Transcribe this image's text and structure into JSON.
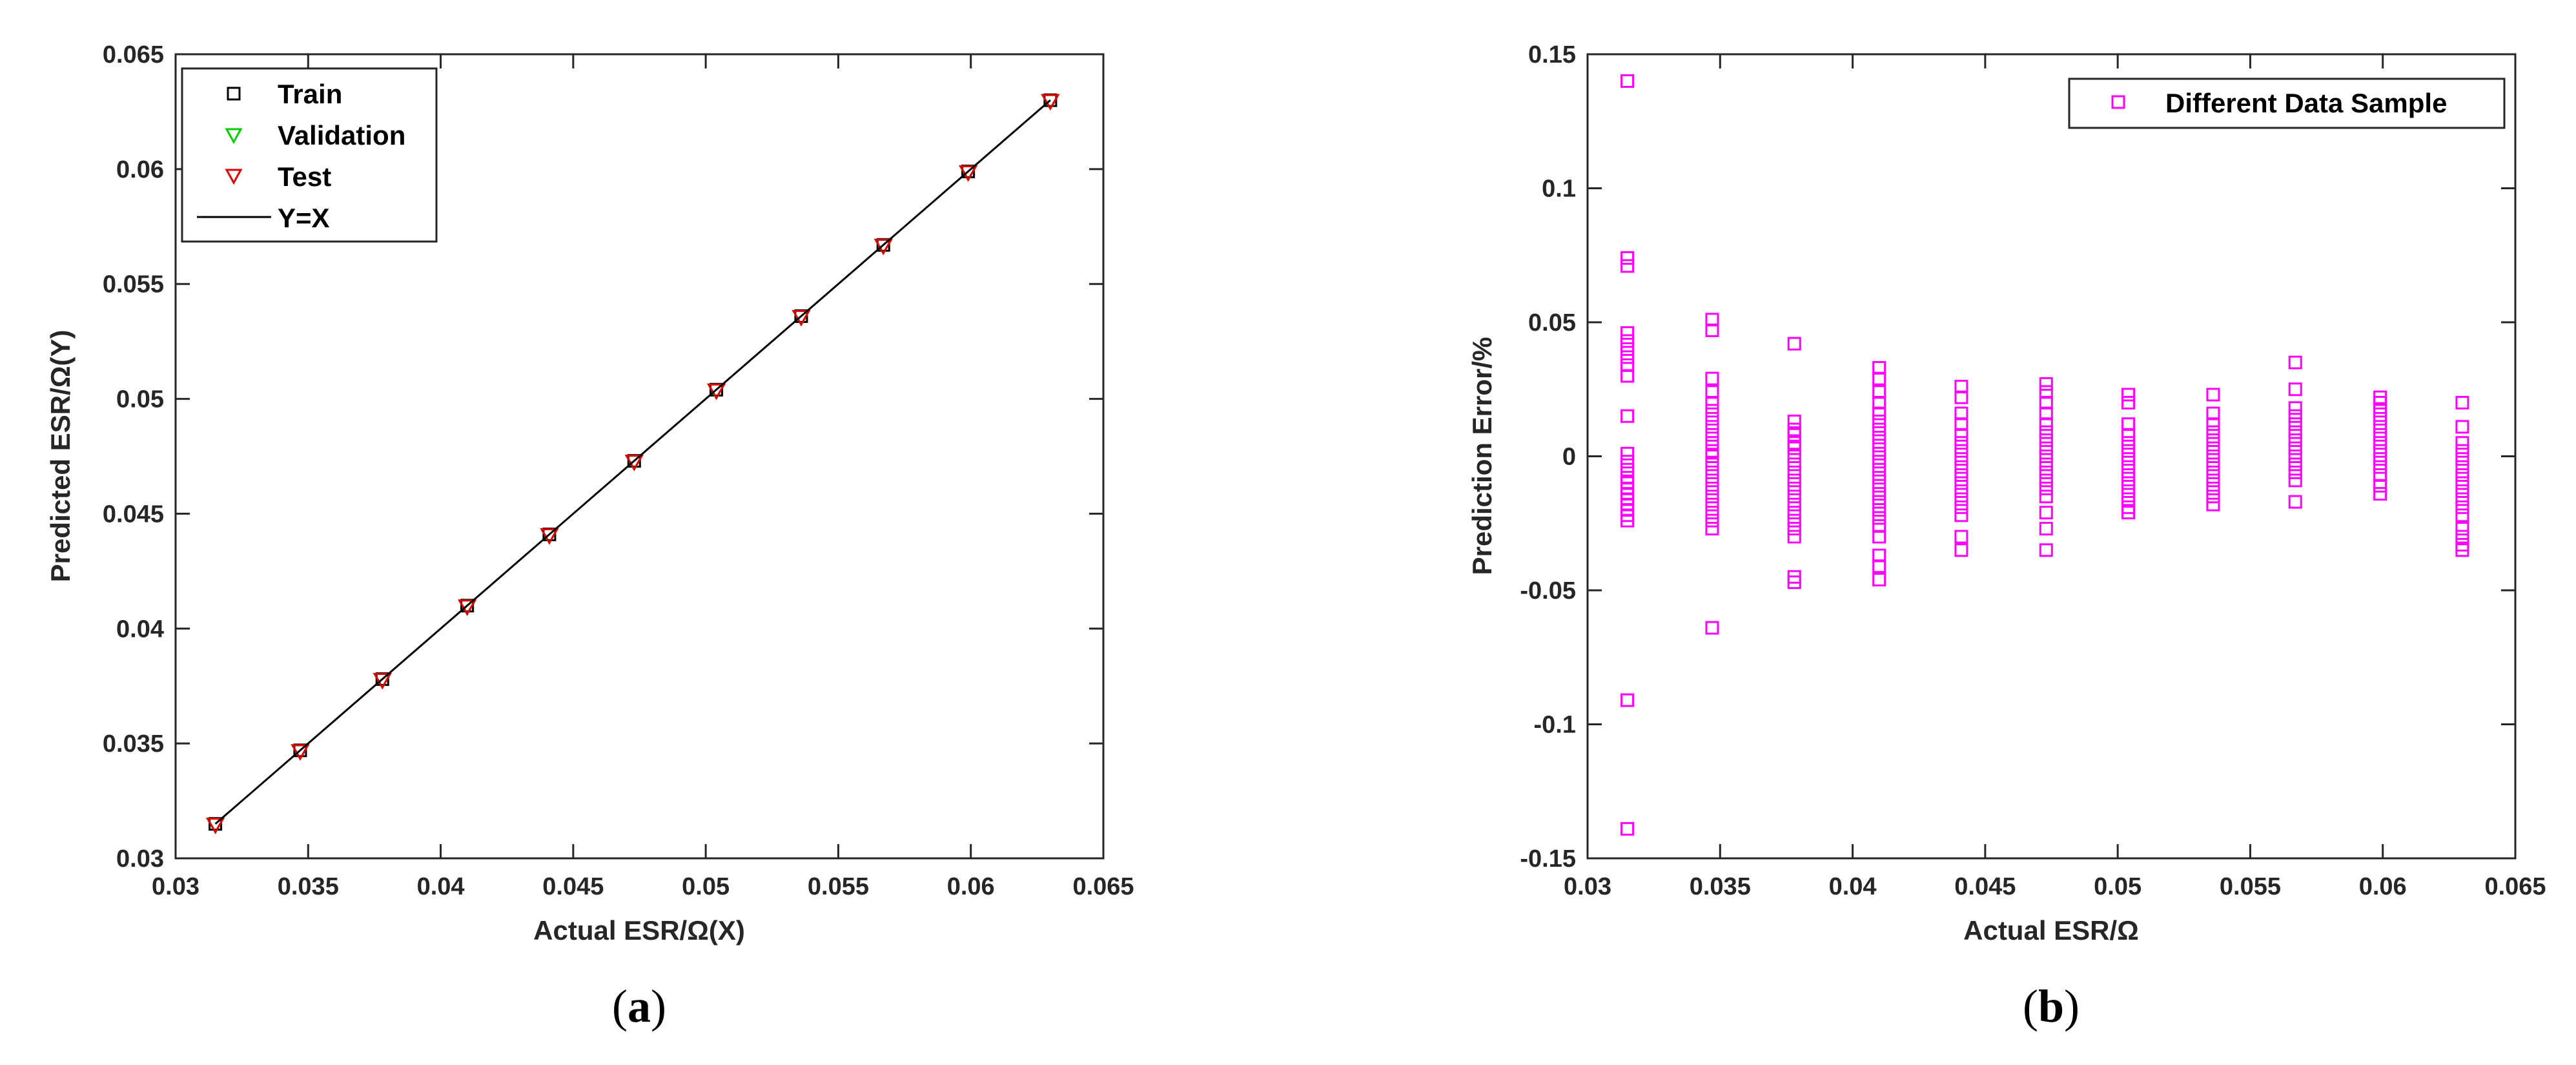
{
  "chart_data": [
    {
      "type": "scatter",
      "xlabel": "Actual ESR/Ω(X)",
      "ylabel": "Predicted ESR/Ω(Y)",
      "xlim": [
        0.03,
        0.065
      ],
      "ylim": [
        0.03,
        0.065
      ],
      "xticks": [
        "0.03",
        "0.035",
        "0.04",
        "0.045",
        "0.05",
        "0.055",
        "0.06",
        "0.065"
      ],
      "yticks": [
        "0.03",
        "0.035",
        "0.04",
        "0.045",
        "0.05",
        "0.055",
        "0.06",
        "0.065"
      ],
      "grid": false,
      "legend_position": "top-left",
      "caption": "a",
      "series": [
        {
          "name": "Train",
          "marker": "square",
          "color": "#000000",
          "x": [
            0.0315,
            0.0347,
            0.0378,
            0.041,
            0.0441,
            0.0473,
            0.0504,
            0.0536,
            0.0567,
            0.0599,
            0.063
          ],
          "y": [
            0.0315,
            0.0347,
            0.0378,
            0.041,
            0.0441,
            0.0473,
            0.0504,
            0.0536,
            0.0567,
            0.0599,
            0.063
          ]
        },
        {
          "name": "Validation",
          "marker": "triangle-down",
          "color": "#00cc00",
          "x": [
            0.0315,
            0.0347,
            0.0378,
            0.041,
            0.0441,
            0.0473,
            0.0504,
            0.0536,
            0.0567,
            0.0599,
            0.063
          ],
          "y": [
            0.0315,
            0.0347,
            0.0378,
            0.041,
            0.0441,
            0.0473,
            0.0504,
            0.0536,
            0.0567,
            0.0599,
            0.063
          ]
        },
        {
          "name": "Test",
          "marker": "triangle-down",
          "color": "#e00000",
          "x": [
            0.0315,
            0.0347,
            0.0378,
            0.041,
            0.0441,
            0.0473,
            0.0504,
            0.0536,
            0.0567,
            0.0599,
            0.063
          ],
          "y": [
            0.0315,
            0.0347,
            0.0378,
            0.041,
            0.0441,
            0.0473,
            0.0504,
            0.0536,
            0.0567,
            0.0599,
            0.063
          ]
        },
        {
          "name": "Y=X",
          "marker": "line",
          "color": "#000000",
          "x": [
            0.0315,
            0.063
          ],
          "y": [
            0.0315,
            0.063
          ]
        }
      ]
    },
    {
      "type": "scatter",
      "xlabel": "Actual ESR/Ω",
      "ylabel": "Prediction Error/%",
      "xlim": [
        0.03,
        0.065
      ],
      "ylim": [
        -0.15,
        0.15
      ],
      "xticks": [
        "0.03",
        "0.035",
        "0.04",
        "0.045",
        "0.05",
        "0.055",
        "0.06",
        "0.065"
      ],
      "yticks": [
        "-0.15",
        "-0.1",
        "-0.05",
        "0",
        "0.05",
        "0.1",
        "0.15"
      ],
      "grid": false,
      "legend_position": "top-right",
      "caption": "b",
      "series": [
        {
          "name": "Different Data Sample",
          "marker": "square",
          "color": "#ff00ff",
          "groups": [
            {
              "x": 0.0315,
              "y": [
                0.14,
                0.074,
                0.071,
                0.046,
                0.043,
                0.04,
                0.037,
                0.034,
                0.03,
                0.015,
                0.001,
                -0.002,
                -0.005,
                -0.008,
                -0.01,
                -0.012,
                -0.014,
                -0.016,
                -0.018,
                -0.02,
                -0.022,
                -0.024,
                -0.091,
                -0.139
              ]
            },
            {
              "x": 0.0347,
              "y": [
                0.051,
                0.047,
                0.029,
                0.024,
                0.02,
                0.017,
                0.014,
                0.011,
                0.008,
                0.005,
                0.002,
                0.0,
                -0.003,
                -0.006,
                -0.009,
                -0.012,
                -0.015,
                -0.018,
                -0.021,
                -0.024,
                -0.027,
                -0.064
              ]
            },
            {
              "x": 0.0378,
              "y": [
                0.042,
                0.013,
                0.01,
                0.008,
                0.005,
                0.003,
                0.0,
                -0.003,
                -0.006,
                -0.009,
                -0.012,
                -0.015,
                -0.018,
                -0.021,
                -0.024,
                -0.027,
                -0.03,
                -0.045,
                -0.047
              ]
            },
            {
              "x": 0.041,
              "y": [
                0.033,
                0.029,
                0.024,
                0.02,
                0.016,
                0.013,
                0.01,
                0.007,
                0.004,
                0.001,
                -0.002,
                -0.005,
                -0.008,
                -0.011,
                -0.014,
                -0.017,
                -0.02,
                -0.023,
                -0.026,
                -0.03,
                -0.037,
                -0.041,
                -0.046
              ]
            },
            {
              "x": 0.0441,
              "y": [
                0.026,
                0.022,
                0.016,
                0.012,
                0.008,
                0.005,
                0.002,
                -0.001,
                -0.004,
                -0.007,
                -0.01,
                -0.013,
                -0.016,
                -0.019,
                -0.022,
                -0.03,
                -0.035
              ]
            },
            {
              "x": 0.0473,
              "y": [
                0.027,
                0.024,
                0.02,
                0.016,
                0.012,
                0.009,
                0.006,
                0.003,
                0.0,
                -0.003,
                -0.006,
                -0.009,
                -0.012,
                -0.015,
                -0.021,
                -0.027,
                -0.035
              ]
            },
            {
              "x": 0.0504,
              "y": [
                0.023,
                0.02,
                0.012,
                0.008,
                0.005,
                0.002,
                -0.001,
                -0.004,
                -0.007,
                -0.01,
                -0.013,
                -0.016,
                -0.019,
                -0.021
              ]
            },
            {
              "x": 0.0536,
              "y": [
                0.023,
                0.016,
                0.012,
                0.009,
                0.006,
                0.003,
                0.0,
                -0.003,
                -0.006,
                -0.009,
                -0.012,
                -0.015,
                -0.018
              ]
            },
            {
              "x": 0.0567,
              "y": [
                0.035,
                0.025,
                0.018,
                0.015,
                0.012,
                0.009,
                0.006,
                0.003,
                0.0,
                -0.003,
                -0.006,
                -0.009,
                -0.017
              ]
            },
            {
              "x": 0.0599,
              "y": [
                0.022,
                0.02,
                0.017,
                0.014,
                0.011,
                0.008,
                0.005,
                0.002,
                -0.001,
                -0.004,
                -0.007,
                -0.011,
                -0.014
              ]
            },
            {
              "x": 0.063,
              "y": [
                0.02,
                0.011,
                0.005,
                0.002,
                -0.001,
                -0.004,
                -0.007,
                -0.01,
                -0.013,
                -0.016,
                -0.019,
                -0.022,
                -0.027,
                -0.03,
                -0.033,
                -0.035
              ]
            }
          ]
        }
      ]
    }
  ]
}
